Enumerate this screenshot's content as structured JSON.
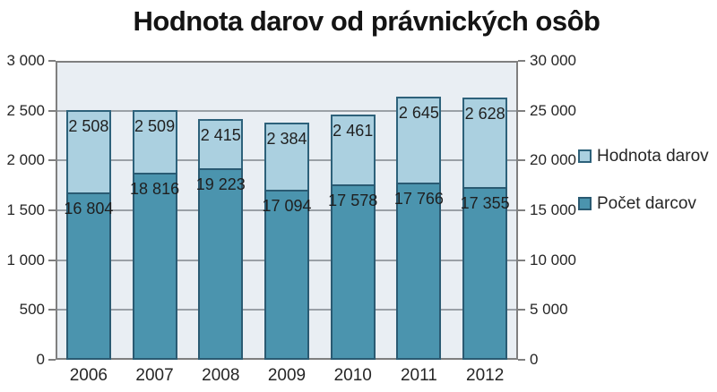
{
  "title": "Hodnota darov od právnických osôb",
  "chart_data": {
    "type": "bar",
    "subtype": "overlapped-dual-axis-columns",
    "title": "Hodnota darov od právnických osôb",
    "categories": [
      "2006",
      "2007",
      "2008",
      "2009",
      "2010",
      "2011",
      "2012"
    ],
    "series": [
      {
        "name": "Hodnota darov",
        "axis": "left",
        "color": "#abd0e0",
        "border_color": "#2d617a",
        "values": [
          2508,
          2509,
          2415,
          2384,
          2461,
          2645,
          2628
        ],
        "labels": [
          "2 508",
          "2 509",
          "2 415",
          "2 384",
          "2 461",
          "2 645",
          "2 628"
        ]
      },
      {
        "name": "Počet darcov",
        "axis": "right",
        "color": "#4b94ae",
        "border_color": "#2a5a72",
        "values": [
          16804,
          18816,
          19223,
          17094,
          17578,
          17766,
          17355
        ],
        "labels": [
          "16 804",
          "18 816",
          "19 223",
          "17 094",
          "17 578",
          "17 766",
          "17 355"
        ]
      }
    ],
    "left_axis": {
      "min": 0,
      "max": 3000,
      "tick_labels": [
        "0",
        "500",
        "1 000",
        "1 500",
        "2 000",
        "2 500",
        "3 000"
      ]
    },
    "right_axis": {
      "min": 0,
      "max": 30000,
      "tick_labels": [
        "0",
        "5 000",
        "10 000",
        "15 000",
        "20 000",
        "25 000",
        "30 000"
      ]
    },
    "legend": {
      "position": "right",
      "entries": [
        "Hodnota darov",
        "Počet darcov"
      ]
    },
    "grid": true,
    "data_labels": "inside-end",
    "plot_bg": "#e9eef3",
    "grid_color": "#9aa0a6",
    "axis_line_color": "#7f7f7f",
    "text_color": "#262626"
  }
}
